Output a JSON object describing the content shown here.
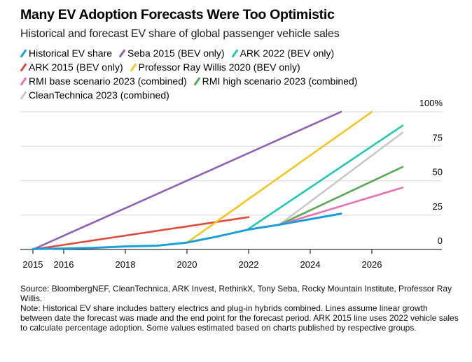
{
  "title": "Many EV Adoption Forecasts Were Too Optimistic",
  "subtitle": "Historical and forecast EV share of global passenger vehicle sales",
  "chart_data": {
    "type": "line",
    "title": "Many EV Adoption Forecasts Were Too Optimistic",
    "subtitle": "Historical and forecast EV share of global passenger vehicle sales",
    "xlim": [
      2015,
      2028
    ],
    "ylim": [
      0,
      100
    ],
    "x_ticks": [
      "2015",
      "2016",
      "2018",
      "2020",
      "2022",
      "2024",
      "2026"
    ],
    "y_ticks": [
      "0",
      "25",
      "50",
      "75",
      "100%"
    ],
    "grid": "horizontal",
    "legend_placement": "top",
    "series": [
      {
        "name": "Historical EV share",
        "color": "#1a9fdb",
        "x": [
          2015,
          2016,
          2017,
          2018,
          2019,
          2020,
          2021,
          2022,
          2023,
          2024,
          2025
        ],
        "y": [
          0.3,
          0.7,
          1.2,
          2.2,
          2.7,
          5,
          9.5,
          14.5,
          18,
          22,
          26
        ]
      },
      {
        "name": "Seba 2015 (BEV only)",
        "color": "#8d5fb5",
        "x": [
          2015,
          2025
        ],
        "y": [
          0,
          100
        ]
      },
      {
        "name": "ARK 2022 (BEV only)",
        "color": "#1fc8b4",
        "x": [
          2022,
          2027
        ],
        "y": [
          15,
          90
        ]
      },
      {
        "name": "ARK 2015 (BEV only)",
        "color": "#e04a3a",
        "x": [
          2015,
          2022
        ],
        "y": [
          0,
          23.5
        ]
      },
      {
        "name": "Professor Ray Willis 2020 (BEV only)",
        "color": "#f5c623",
        "x": [
          2020,
          2026
        ],
        "y": [
          5,
          100
        ]
      },
      {
        "name": "RMI base scenario 2023 (combined)",
        "color": "#e86fb0",
        "x": [
          2023,
          2027
        ],
        "y": [
          18,
          45
        ]
      },
      {
        "name": "RMI high scenario 2023 (combined)",
        "color": "#58a955",
        "x": [
          2023,
          2027
        ],
        "y": [
          18,
          60
        ]
      },
      {
        "name": "CleanTechnica 2023 (combined)",
        "color": "#c8c8c8",
        "x": [
          2023,
          2027
        ],
        "y": [
          18,
          85
        ]
      }
    ]
  },
  "notes": [
    "Source: BloombergNEF, CleanTechnica, ARK Invest, RethinkX, Tony Seba, Rocky Mountain Institute, Professor Ray Willis.",
    "Note: Historical EV share includes battery electrics and plug-in hybrids combined. Lines assume linear growth between date the forecast was made and the end point for the forecast period. ARK 2015 line uses 2022 vehicle sales to calculate percentage adoption. Some values estimated based on charts published by respective groups."
  ]
}
